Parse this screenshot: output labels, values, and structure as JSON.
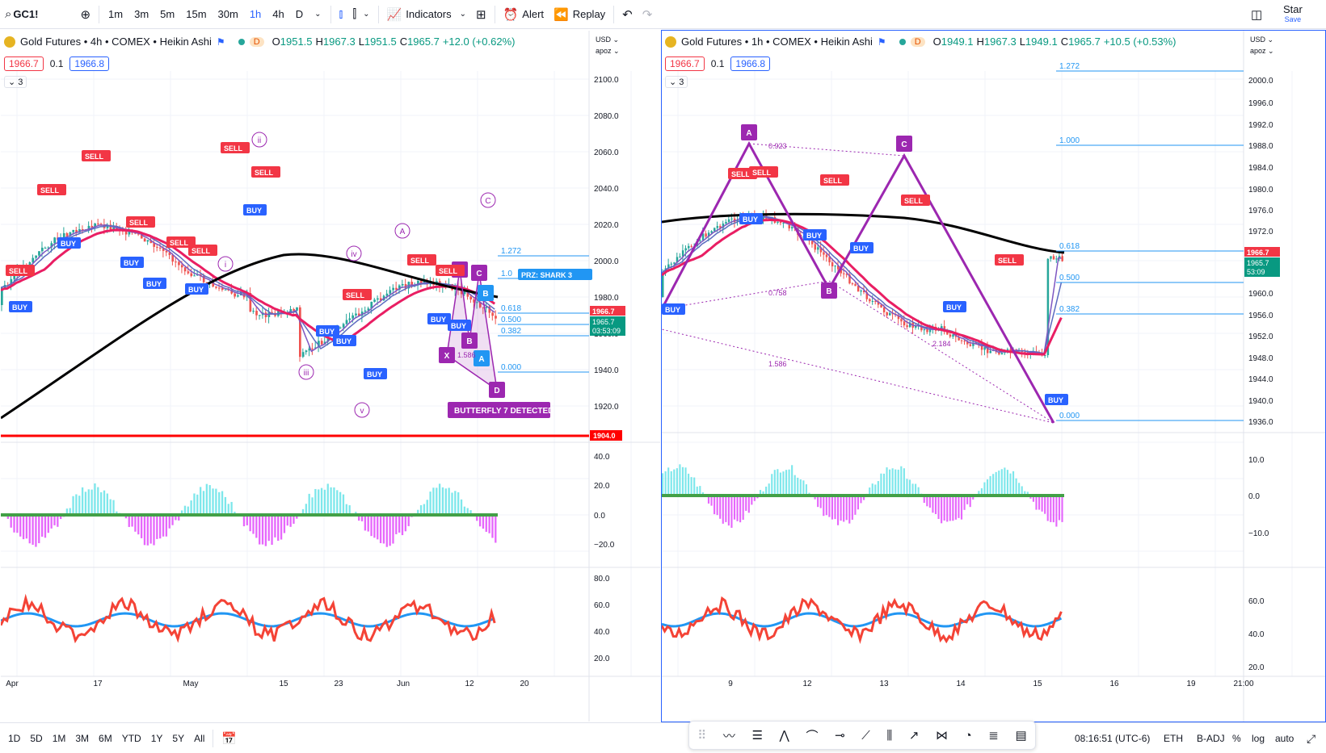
{
  "toolbar": {
    "symbol": "GC1!",
    "timeframes": [
      "1m",
      "3m",
      "5m",
      "15m",
      "30m",
      "1h",
      "4h",
      "D"
    ],
    "active_timeframe": "1h",
    "indicators_label": "Indicators",
    "alert_label": "Alert",
    "replay_label": "Replay",
    "star_label": "Star",
    "save_label": "Save"
  },
  "left": {
    "title": "Gold Futures • 4h • COMEX • Heikin Ashi",
    "d_badge": "D",
    "ohlc": {
      "o": "1951.5",
      "h": "1967.3",
      "l": "1951.5",
      "c": "1965.7",
      "chg": "+12.0 (+0.62%)"
    },
    "sell_price": "1966.7",
    "spread": "0.1",
    "buy_price": "1966.8",
    "collapse_count": "3",
    "currency": "USD",
    "scale_mode": "apoz",
    "price_ticks": [
      "2100.0",
      "2080.0",
      "2060.0",
      "2040.0",
      "2020.0",
      "2000.0",
      "1980.0",
      "1960.0",
      "1940.0",
      "1920.0"
    ],
    "last_price": "1966.7",
    "last_price2": "1965.7",
    "countdown": "03:53:09",
    "level_price": "1904.0",
    "osc_ticks": [
      "40.0",
      "20.0",
      "0.0",
      "−20.0"
    ],
    "rsi_ticks": [
      "80.0",
      "60.0",
      "40.0",
      "20.0"
    ],
    "time_labels": [
      "Apr",
      "17",
      "May",
      "15",
      "23",
      "Jun",
      "12",
      "20"
    ],
    "fib": [
      "1.272",
      "1.0",
      "0.618",
      "0.500",
      "0.382",
      "0.000"
    ],
    "prz_label": "PRZ: SHARK 3",
    "butterfly_label": "BUTTERFLY 7 DETECTED",
    "waves": [
      "ii",
      "i",
      "iii",
      "iv",
      "v",
      "A",
      "C"
    ],
    "pattern_points": [
      "A",
      "C",
      "B",
      "X",
      "A",
      "B",
      "D"
    ],
    "ratio_text": "1.586"
  },
  "right": {
    "title": "Gold Futures • 1h • COMEX • Heikin Ashi",
    "d_badge": "D",
    "ohlc": {
      "o": "1949.1",
      "h": "1967.3",
      "l": "1949.1",
      "c": "1965.7",
      "chg": "+10.5 (+0.53%)"
    },
    "sell_price": "1966.7",
    "spread": "0.1",
    "buy_price": "1966.8",
    "collapse_count": "3",
    "currency": "USD",
    "scale_mode": "apoz",
    "price_ticks": [
      "2000.0",
      "1996.0",
      "1992.0",
      "1988.0",
      "1984.0",
      "1980.0",
      "1976.0",
      "1972.0",
      "1960.0",
      "1956.0",
      "1952.0",
      "1948.0",
      "1944.0",
      "1940.0",
      "1936.0"
    ],
    "last_price": "1966.7",
    "last_price2": "1965.7",
    "countdown": "53:09",
    "osc_ticks": [
      "10.0",
      "0.0",
      "−10.0"
    ],
    "rsi_ticks": [
      "60.0",
      "40.0",
      "20.0"
    ],
    "time_labels": [
      "9",
      "12",
      "13",
      "14",
      "15",
      "16",
      "19",
      "21:00"
    ],
    "fib": [
      "1.272",
      "1.000",
      "0.618",
      "0.500",
      "0.382",
      "0.000"
    ],
    "pattern_points": [
      "A",
      "C",
      "B"
    ],
    "ratios": [
      "0.923",
      "0.758",
      "2.184",
      "1.586"
    ]
  },
  "bottom": {
    "ranges": [
      "1D",
      "5D",
      "1M",
      "3M",
      "6M",
      "YTD",
      "1Y",
      "5Y",
      "All"
    ],
    "clock": "08:16:51 (UTC-6)",
    "session": "ETH",
    "adj": "B-ADJ",
    "pct": "%",
    "log": "log",
    "auto": "auto"
  },
  "colors": {
    "accent": "#2962ff",
    "sell": "#f23645",
    "buy": "#2962ff",
    "pattern": "#9c27b0",
    "up": "#089981"
  }
}
